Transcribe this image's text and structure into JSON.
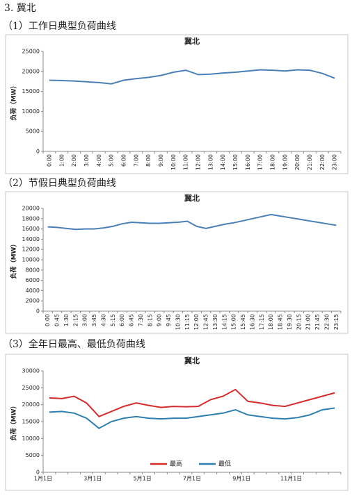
{
  "heading": "3. 冀北",
  "subheadings": [
    "（1）工作日典型负荷曲线",
    "（2）节假日典型负荷曲线",
    "（3）全年日最高、最低负荷曲线"
  ],
  "chart_data": [
    {
      "type": "line",
      "title": "冀北",
      "y_label": "负荷（MW）",
      "color": "#4a7fb5",
      "categories": [
        "0:00",
        "1:00",
        "2:00",
        "3:00",
        "4:00",
        "5:00",
        "6:00",
        "7:00",
        "8:00",
        "9:00",
        "10:00",
        "11:00",
        "12:00",
        "13:00",
        "14:00",
        "15:00",
        "16:00",
        "17:00",
        "18:00",
        "19:00",
        "20:00",
        "21:00",
        "22:00",
        "23:00"
      ],
      "values": [
        17800,
        17700,
        17600,
        17400,
        17200,
        16900,
        17800,
        18200,
        18500,
        19000,
        19800,
        20300,
        19200,
        19300,
        19600,
        19800,
        20100,
        20400,
        20300,
        20100,
        20400,
        20300,
        19500,
        18300
      ],
      "ylim": [
        0,
        25000
      ],
      "yticks": [
        0,
        5000,
        10000,
        15000,
        20000,
        25000
      ]
    },
    {
      "type": "line",
      "title": "冀北",
      "y_label": "负荷（MW）",
      "color": "#4a7fb5",
      "categories": [
        "0:00",
        "0:45",
        "1:30",
        "2:15",
        "3:00",
        "3:45",
        "4:30",
        "5:15",
        "6:00",
        "6:45",
        "7:30",
        "8:15",
        "9:00",
        "9:45",
        "10:30",
        "11:15",
        "12:00",
        "12:45",
        "13:30",
        "14:15",
        "15:00",
        "15:45",
        "16:30",
        "17:15",
        "18:00",
        "18:45",
        "19:30",
        "20:15",
        "21:00",
        "21:45",
        "22:30",
        "23:15"
      ],
      "values": [
        16400,
        16300,
        16100,
        15900,
        16000,
        16000,
        16200,
        16500,
        17000,
        17300,
        17200,
        17100,
        17100,
        17200,
        17300,
        17500,
        16500,
        16100,
        16500,
        16900,
        17200,
        17600,
        18000,
        18400,
        18800,
        18500,
        18200,
        17900,
        17600,
        17300,
        17000,
        16700
      ],
      "ylim": [
        0,
        20000
      ],
      "yticks": [
        0,
        2000,
        4000,
        6000,
        8000,
        10000,
        12000,
        14000,
        16000,
        18000,
        20000
      ]
    },
    {
      "type": "line",
      "title": "冀北",
      "y_label": "负荷（MW）",
      "categories": [
        "1月1日",
        null,
        null,
        null,
        "3月1日",
        null,
        null,
        null,
        "5月1日",
        null,
        null,
        null,
        "7月1日",
        null,
        null,
        null,
        "9月1日",
        null,
        null,
        null,
        "11月1日",
        null,
        null,
        null
      ],
      "series": [
        {
          "name": "最高",
          "color": "#d62b2b",
          "values": [
            22000,
            21800,
            22500,
            20500,
            16500,
            18000,
            19500,
            20500,
            19800,
            19200,
            19500,
            19400,
            19500,
            21500,
            22500,
            24500,
            21000,
            20500,
            19800,
            19500,
            20500,
            21500,
            22500,
            23500
          ]
        },
        {
          "name": "最低",
          "color": "#2c7fb0",
          "values": [
            17800,
            18000,
            17500,
            16000,
            13000,
            15000,
            16000,
            16500,
            16000,
            15800,
            16000,
            16000,
            16500,
            17000,
            17500,
            18500,
            17000,
            16500,
            16000,
            15800,
            16200,
            17000,
            18500,
            19000
          ]
        }
      ],
      "ylim": [
        0,
        30000
      ],
      "yticks": [
        0,
        5000,
        10000,
        15000,
        20000,
        25000,
        30000
      ],
      "legend": "bottom"
    }
  ]
}
